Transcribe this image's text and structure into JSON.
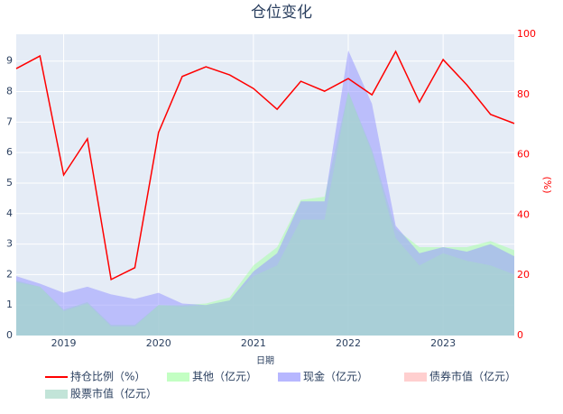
{
  "chart_data": {
    "type": "area-line",
    "title": "仓位变化",
    "x_label": "日期",
    "y2_label": "(%)",
    "x": [
      "2018-07",
      "2018-10",
      "2019-01",
      "2019-04",
      "2019-07",
      "2019-10",
      "2020-01",
      "2020-04",
      "2020-07",
      "2020-10",
      "2021-01",
      "2021-04",
      "2021-07",
      "2021-10",
      "2022-01",
      "2022-04",
      "2022-07",
      "2022-10",
      "2023-01",
      "2023-04",
      "2023-07",
      "2023-10"
    ],
    "xlim": [
      "2018-07",
      "2023-10"
    ],
    "xticks": [
      "2019",
      "2020",
      "2021",
      "2022",
      "2023"
    ],
    "ylim": [
      0,
      9.88
    ],
    "yticks": [
      0,
      1,
      2,
      3,
      4,
      5,
      6,
      7,
      8,
      9
    ],
    "y2lim": [
      0,
      100
    ],
    "y2ticks": [
      0,
      20,
      40,
      60,
      80,
      100
    ],
    "grid": true,
    "series": [
      {
        "name": "持仓比例（%）",
        "color": "#ff0000",
        "kind": "line",
        "axis": "y2",
        "values": [
          88.6,
          92.8,
          53.3,
          65.3,
          18.6,
          22.5,
          67.4,
          86.0,
          89.2,
          86.5,
          82.0,
          75.1,
          84.4,
          81.1,
          85.3,
          79.9,
          94.3,
          77.5,
          91.6,
          83.2,
          73.4,
          70.4
        ]
      },
      {
        "name": "其他（亿元）",
        "color": "#aaffaa",
        "kind": "area",
        "values": [
          1.8,
          1.6,
          0.85,
          1.1,
          0.35,
          0.35,
          1.0,
          1.0,
          1.05,
          1.25,
          2.3,
          2.9,
          4.45,
          4.55,
          8.0,
          6.1,
          3.5,
          2.9,
          2.9,
          2.9,
          3.1,
          2.8
        ]
      },
      {
        "name": "现金（亿元）",
        "color": "#9999ff",
        "kind": "area",
        "values": [
          1.95,
          1.7,
          1.4,
          1.6,
          1.35,
          1.2,
          1.4,
          1.05,
          1.0,
          1.15,
          2.1,
          2.7,
          4.4,
          4.4,
          9.35,
          7.6,
          3.6,
          2.7,
          2.9,
          2.75,
          3.0,
          2.6
        ]
      },
      {
        "name": "债券市值（亿元）",
        "color": "#ffbbbb",
        "kind": "area",
        "values": [
          0,
          0,
          0,
          0,
          0,
          0,
          0,
          0,
          0,
          0,
          0,
          0,
          0,
          0,
          0,
          0,
          0,
          0,
          0,
          0,
          0,
          0
        ]
      },
      {
        "name": "股票市值（亿元）",
        "color": "#a8d8c8",
        "kind": "area",
        "values": [
          1.75,
          1.6,
          0.8,
          1.05,
          0.3,
          0.3,
          1.0,
          0.95,
          1.0,
          1.15,
          1.95,
          2.3,
          3.8,
          3.8,
          8.0,
          6.0,
          3.2,
          2.3,
          2.7,
          2.45,
          2.3,
          2.0
        ]
      }
    ]
  }
}
